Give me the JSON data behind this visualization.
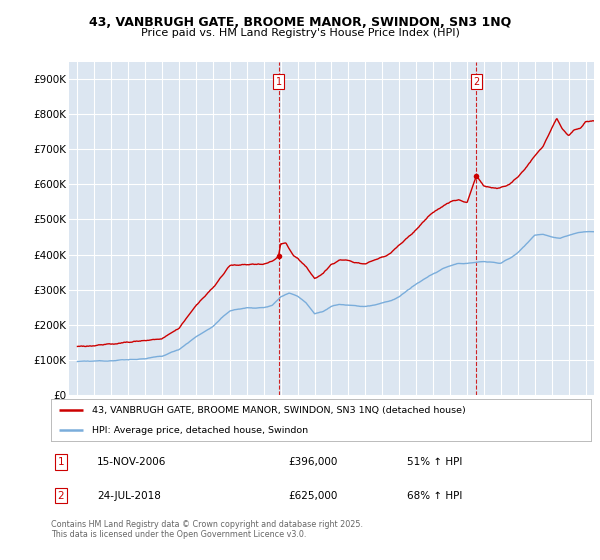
{
  "title_line1": "43, VANBRUGH GATE, BROOME MANOR, SWINDON, SN3 1NQ",
  "title_line2": "Price paid vs. HM Land Registry's House Price Index (HPI)",
  "background_color": "#dce6f1",
  "fig_bg_color": "#ffffff",
  "ylim": [
    0,
    950000
  ],
  "yticks": [
    0,
    100000,
    200000,
    300000,
    400000,
    500000,
    600000,
    700000,
    800000,
    900000
  ],
  "ytick_labels": [
    "£0",
    "£100K",
    "£200K",
    "£300K",
    "£400K",
    "£500K",
    "£600K",
    "£700K",
    "£800K",
    "£900K"
  ],
  "xlim_start": 1994.5,
  "xlim_end": 2025.5,
  "xticks": [
    1995,
    1996,
    1997,
    1998,
    1999,
    2000,
    2001,
    2002,
    2003,
    2004,
    2005,
    2006,
    2007,
    2008,
    2009,
    2010,
    2011,
    2012,
    2013,
    2014,
    2015,
    2016,
    2017,
    2018,
    2019,
    2020,
    2021,
    2022,
    2023,
    2024,
    2025
  ],
  "sale1_x": 2006.876,
  "sale1_y": 396000,
  "sale1_label": "1",
  "sale1_date": "15-NOV-2006",
  "sale1_price": "£396,000",
  "sale1_hpi": "51% ↑ HPI",
  "sale2_x": 2018.558,
  "sale2_y": 625000,
  "sale2_label": "2",
  "sale2_date": "24-JUL-2018",
  "sale2_price": "£625,000",
  "sale2_hpi": "68% ↑ HPI",
  "line_color_red": "#cc0000",
  "line_color_blue": "#7aaddb",
  "legend_label_red": "43, VANBRUGH GATE, BROOME MANOR, SWINDON, SN3 1NQ (detached house)",
  "legend_label_blue": "HPI: Average price, detached house, Swindon",
  "footer_text": "Contains HM Land Registry data © Crown copyright and database right 2025.\nThis data is licensed under the Open Government Licence v3.0.",
  "grid_color": "#ffffff",
  "dashed_color": "#cc0000"
}
